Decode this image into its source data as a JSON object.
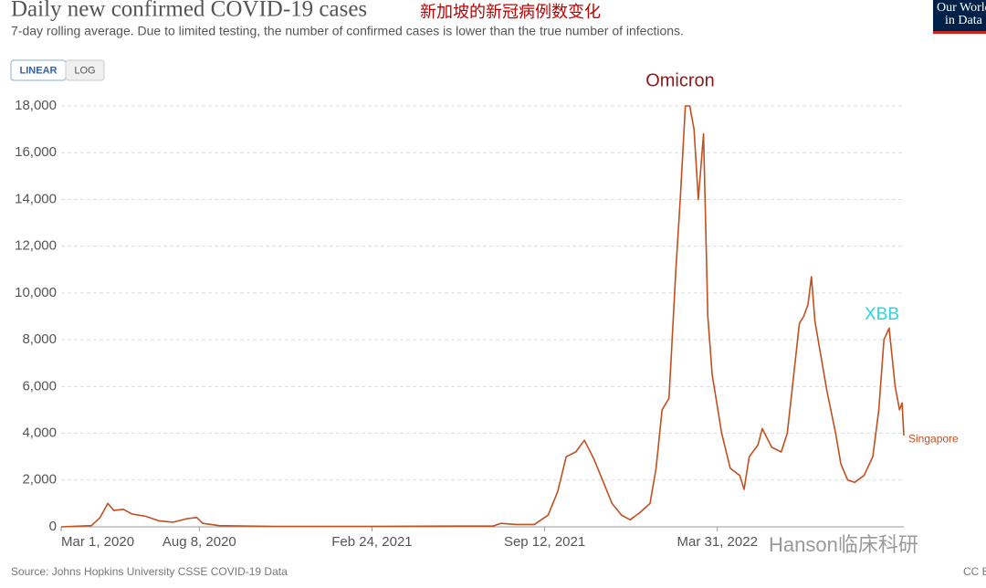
{
  "chart_data": {
    "type": "line",
    "title": "Daily new confirmed COVID-19 cases",
    "title_note": "新加坡的新冠病例数变化",
    "subtitle": "7-day rolling average. Due to limited testing, the number of confirmed cases is lower than the true number of infections.",
    "buttons": [
      "LINEAR",
      "LOG"
    ],
    "logo": [
      "Our World",
      "in Data"
    ],
    "source": "Source: Johns Hopkins University CSSE COVID-19 Data",
    "license": "CC BY",
    "watermark": "Hanson临床科研",
    "annotations": [
      {
        "text": "Omicron",
        "color": "#8b1a1a"
      },
      {
        "text": "XBB",
        "color": "#2fd3e0"
      }
    ],
    "xlim": [
      "2020-03-01",
      "2022-11-02"
    ],
    "xticks": [
      {
        "value": "2020-03-01",
        "label": "Mar 1, 2020"
      },
      {
        "value": "2020-08-08",
        "label": "Aug 8, 2020"
      },
      {
        "value": "2021-02-24",
        "label": "Feb 24, 2021"
      },
      {
        "value": "2021-09-12",
        "label": "Sep 12, 2021"
      },
      {
        "value": "2022-03-31",
        "label": "Mar 31, 2022"
      }
    ],
    "ylim": [
      0,
      18000
    ],
    "yticks": [
      0,
      {
        "value": 2000,
        "label": "2,000"
      },
      {
        "value": 4000,
        "label": "4,000"
      },
      {
        "value": 6000,
        "label": "6,000"
      },
      {
        "value": 8000,
        "label": "8,000"
      },
      {
        "value": 10000,
        "label": "10,000"
      },
      {
        "value": 12000,
        "label": "12,000"
      },
      {
        "value": 14000,
        "label": "14,000"
      },
      {
        "value": 16000,
        "label": "16,000"
      },
      {
        "value": 18000,
        "label": "18,000"
      }
    ],
    "grid": true,
    "x": [
      "2020-03-01",
      "2020-04-05",
      "2020-04-15",
      "2020-04-24",
      "2020-05-01",
      "2020-05-12",
      "2020-05-22",
      "2020-06-07",
      "2020-06-23",
      "2020-07-09",
      "2020-07-25",
      "2020-08-05",
      "2020-08-12",
      "2020-08-31",
      "2020-11-03",
      "2021-02-16",
      "2021-06-02",
      "2021-07-14",
      "2021-07-23",
      "2021-08-10",
      "2021-08-31",
      "2021-09-16",
      "2021-09-27",
      "2021-10-07",
      "2021-10-18",
      "2021-10-28",
      "2021-11-08",
      "2021-11-18",
      "2021-11-29",
      "2021-12-10",
      "2021-12-20",
      "2021-12-31",
      "2022-01-12",
      "2022-01-19",
      "2022-01-26",
      "2022-02-03",
      "2022-02-11",
      "2022-02-16",
      "2022-02-22",
      "2022-02-27",
      "2022-03-04",
      "2022-03-09",
      "2022-03-15",
      "2022-03-20",
      "2022-03-25",
      "2022-04-05",
      "2022-04-15",
      "2022-04-26",
      "2022-05-01",
      "2022-05-07",
      "2022-05-17",
      "2022-05-22",
      "2022-06-02",
      "2022-06-13",
      "2022-06-20",
      "2022-06-26",
      "2022-07-04",
      "2022-07-09",
      "2022-07-14",
      "2022-07-18",
      "2022-07-22",
      "2022-07-28",
      "2022-08-05",
      "2022-08-15",
      "2022-08-21",
      "2022-08-29",
      "2022-09-06",
      "2022-09-17",
      "2022-09-27",
      "2022-10-04",
      "2022-10-10",
      "2022-10-16",
      "2022-10-23",
      "2022-10-28",
      "2022-10-31",
      "2022-11-02"
    ],
    "series": [
      {
        "name": "Singapore",
        "color": "#c0501f",
        "values": [
          0,
          50,
          400,
          1000,
          700,
          750,
          550,
          450,
          250,
          200,
          350,
          400,
          150,
          50,
          20,
          20,
          30,
          30,
          150,
          100,
          100,
          500,
          1500,
          3000,
          3200,
          3700,
          2900,
          2000,
          1000,
          500,
          300,
          600,
          1000,
          2500,
          5000,
          5500,
          11000,
          14000,
          18000,
          18000,
          17000,
          14000,
          16800,
          9000,
          6500,
          4000,
          2500,
          2200,
          1600,
          3000,
          3500,
          4200,
          3400,
          3200,
          4000,
          6000,
          8700,
          9000,
          9500,
          10700,
          8800,
          7500,
          5800,
          4000,
          2700,
          2000,
          1900,
          2200,
          3000,
          5000,
          8000,
          8500,
          6000,
          5000,
          5300,
          3900
        ]
      }
    ]
  }
}
